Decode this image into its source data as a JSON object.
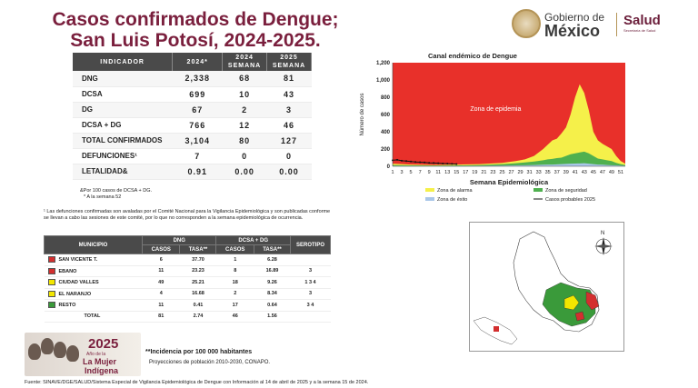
{
  "header": {
    "title_line1": "Casos confirmados de Dengue;",
    "title_line2": "San Luis Potosí, 2024-2025.",
    "gob_line1": "Gobierno de",
    "gob_line2": "México",
    "salud": "Salud",
    "salud_sub": "Secretaría de Salud"
  },
  "indicators": {
    "headers": [
      "INDICADOR",
      "2024*",
      "2024 SEMANA",
      "2025 SEMANA"
    ],
    "rows": [
      {
        "label": "DNG",
        "v2024": "2,338",
        "s2024": "68",
        "s2025": "81"
      },
      {
        "label": "DCSA",
        "v2024": "699",
        "s2024": "10",
        "s2025": "43"
      },
      {
        "label": "DG",
        "v2024": "67",
        "s2024": "2",
        "s2025": "3"
      },
      {
        "label": "DCSA + DG",
        "v2024": "766",
        "s2024": "12",
        "s2025": "46"
      },
      {
        "label": "TOTAL CONFIRMADOS",
        "v2024": "3,104",
        "s2024": "80",
        "s2025": "127"
      },
      {
        "label": "DEFUNCIONES¹",
        "v2024": "7",
        "s2024": "0",
        "s2025": "0"
      },
      {
        "label": "LETALIDAD&",
        "v2024": "0.91",
        "s2024": "0.00",
        "s2025": "0.00"
      }
    ],
    "note1": "&Por 100 casos de DCSA + DG.",
    "note2": "* A la semana 52",
    "note3": "¹ Las defunciones confirmadas son avaladas por el Comité Nacional para la Vigilancia Epidemiológica y son publicadas conforme se llevan a cabo las sesiones de este comité, por lo que no corresponden a la semana epidemiológica de ocurrencia."
  },
  "municipios": {
    "h_municipio": "MUNICIPIO",
    "h_dng": "DNG",
    "h_dcsa": "DCSA + DG",
    "h_serotipo": "SEROTIPO",
    "h_casos": "CASOS",
    "h_tasa": "TASA**",
    "rows": [
      {
        "name": "SAN VICENTE T.",
        "color": "#d32f2f",
        "dng_casos": "6",
        "dng_tasa": "37.70",
        "dc_casos": "1",
        "dc_tasa": "6.28",
        "serotipo": ""
      },
      {
        "name": "EBANO",
        "color": "#d32f2f",
        "dng_casos": "11",
        "dng_tasa": "23.23",
        "dc_casos": "8",
        "dc_tasa": "16.89",
        "serotipo": "3"
      },
      {
        "name": "CIUDAD VALLES",
        "color": "#f2e600",
        "dng_casos": "49",
        "dng_tasa": "25.21",
        "dc_casos": "18",
        "dc_tasa": "9.26",
        "serotipo": "1  3  4"
      },
      {
        "name": "EL NARANJO",
        "color": "#f2e600",
        "dng_casos": "4",
        "dng_tasa": "16.68",
        "dc_casos": "2",
        "dc_tasa": "8.34",
        "serotipo": "3"
      },
      {
        "name": "RESTO",
        "color": "#3a9a3a",
        "dng_casos": "11",
        "dng_tasa": "0.41",
        "dc_casos": "17",
        "dc_tasa": "0.64",
        "serotipo": "3  4"
      },
      {
        "name": "TOTAL",
        "color": "",
        "dng_casos": "81",
        "dng_tasa": "2.74",
        "dc_casos": "46",
        "dc_tasa": "1.56",
        "serotipo": ""
      }
    ]
  },
  "footer": {
    "year": "2025",
    "mujer1": "Año de la",
    "mujer2": "La Mujer",
    "mujer3": "Indígena",
    "incidencia": "**Incidencia por 100 000 habitantes",
    "proyecciones": "Proyecciones de población 2010-2030,  CONAPO.",
    "fuente": "Fuente: SINAVE/DGE/SALUD/Sistema Especial de Vigilancia Epidemiológica de Dengue con Información al 14 de abril de 2025 y a la semana 15 de 2024."
  },
  "map": {
    "north": "N"
  },
  "chart_data": {
    "type": "area",
    "title": "Canal endémico de Dengue",
    "xlabel": "Semana Epidemiológica",
    "ylabel": "Número de casos",
    "xlim": [
      1,
      52
    ],
    "ylim": [
      0,
      1200
    ],
    "yticks": [
      0,
      200,
      400,
      600,
      800,
      1000,
      1200
    ],
    "ytick_labels": [
      "0",
      "200",
      "400",
      "600",
      "800",
      "1,000",
      "1,200"
    ],
    "xtick_labels": [
      "1",
      "3",
      "5",
      "7",
      "9",
      "11",
      "13",
      "15",
      "17",
      "19",
      "21",
      "23",
      "25",
      "27",
      "29",
      "31",
      "33",
      "35",
      "37",
      "39",
      "41",
      "43",
      "45",
      "47",
      "49",
      "51"
    ],
    "annotation": "Zona de epidemia",
    "colors": {
      "epidemia": "#e8302a",
      "alarma": "#f5f04a",
      "seguridad": "#4fb04f",
      "exito": "#a9c6e8",
      "casos": "#111111"
    },
    "legend": [
      "Zona de alarma",
      "Zona de seguridad",
      "Zona de éxito",
      "Casos probables 2025"
    ],
    "series": [
      {
        "name": "Zona de alarma",
        "x": [
          1,
          5,
          10,
          15,
          20,
          25,
          28,
          30,
          32,
          34,
          35,
          36,
          37,
          38,
          39,
          40,
          41,
          42,
          43,
          44,
          45,
          46,
          47,
          48,
          49,
          50,
          51,
          52
        ],
        "values": [
          30,
          20,
          15,
          20,
          25,
          40,
          60,
          80,
          120,
          200,
          250,
          300,
          320,
          380,
          450,
          600,
          800,
          950,
          850,
          650,
          400,
          300,
          260,
          230,
          200,
          120,
          60,
          30
        ]
      },
      {
        "name": "Zona de seguridad",
        "x": [
          1,
          5,
          10,
          15,
          20,
          25,
          28,
          30,
          32,
          34,
          35,
          36,
          37,
          38,
          39,
          40,
          41,
          42,
          43,
          44,
          45,
          46,
          47,
          48,
          49,
          50,
          51,
          52
        ],
        "values": [
          15,
          10,
          8,
          10,
          15,
          25,
          35,
          45,
          55,
          70,
          80,
          85,
          95,
          100,
          120,
          140,
          150,
          160,
          170,
          150,
          120,
          90,
          80,
          70,
          60,
          40,
          25,
          15
        ]
      },
      {
        "name": "Zona de éxito",
        "x": [
          1,
          5,
          10,
          15,
          20,
          25,
          28,
          30,
          32,
          34,
          35,
          36,
          37,
          38,
          39,
          40,
          41,
          42,
          43,
          44,
          45,
          46,
          47,
          48,
          49,
          50,
          51,
          52
        ],
        "values": [
          5,
          4,
          3,
          4,
          5,
          8,
          10,
          12,
          15,
          18,
          20,
          20,
          22,
          25,
          28,
          30,
          32,
          33,
          35,
          30,
          25,
          20,
          18,
          15,
          12,
          10,
          8,
          5
        ]
      },
      {
        "name": "Casos probables 2025",
        "x": [
          1,
          2,
          3,
          4,
          5,
          6,
          7,
          8,
          9,
          10,
          11,
          12,
          13,
          14,
          15
        ],
        "values": [
          70,
          75,
          65,
          60,
          55,
          50,
          48,
          45,
          40,
          38,
          35,
          32,
          30,
          28,
          25
        ]
      }
    ]
  }
}
